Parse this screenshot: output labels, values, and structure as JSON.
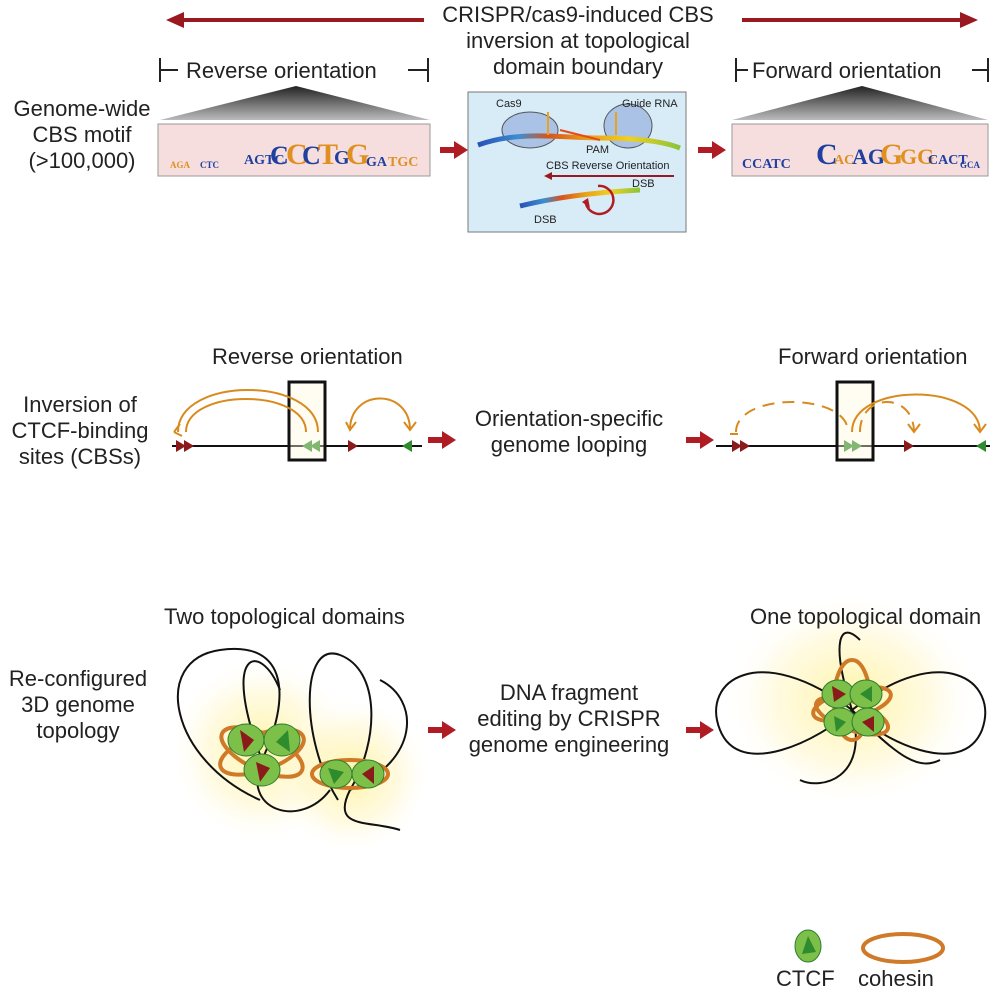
{
  "top": {
    "title": [
      "CRISPR/cas9-induced CBS",
      "inversion at topological",
      "domain boundary"
    ],
    "reverse_label": "Reverse orientation",
    "forward_label": "Forward orientation",
    "motif_label": [
      "Genome-wide",
      "CBS motif",
      "(>100,000)"
    ],
    "inset": {
      "cas9": "Cas9",
      "guide_rna": "Guide RNA",
      "pam": "PAM",
      "cbs_reverse": "CBS Reverse Orientation",
      "dsb_top": "DSB",
      "dsb_bottom": "DSB"
    }
  },
  "middle": {
    "left_heading": "Reverse orientation",
    "right_heading": "Forward orientation",
    "left_label": [
      "Inversion of",
      "CTCF-binding",
      "sites (CBSs)"
    ],
    "center_label": [
      "Orientation-specific",
      "genome looping"
    ]
  },
  "bottom": {
    "left_heading": "Two topological domains",
    "right_heading": "One topological domain",
    "left_label": [
      "Re-configured",
      "3D genome",
      "topology"
    ],
    "center_label": [
      "DNA fragment",
      "editing by CRISPR",
      "genome engineering"
    ]
  },
  "legend": {
    "ctcf": "CTCF",
    "cohesin": "cohesin"
  },
  "colors": {
    "arrow_red": "#b01c24",
    "loop_orange": "#d98a1e",
    "ctcf_green": "#7cc04a",
    "ctcf_dark_green": "#2e8b2e",
    "ctcf_dark_red": "#8b1a1a",
    "cohesin_orange": "#cf7a28",
    "motif_bg": "#f7dede",
    "inset_bg": "#d8ecf8"
  }
}
